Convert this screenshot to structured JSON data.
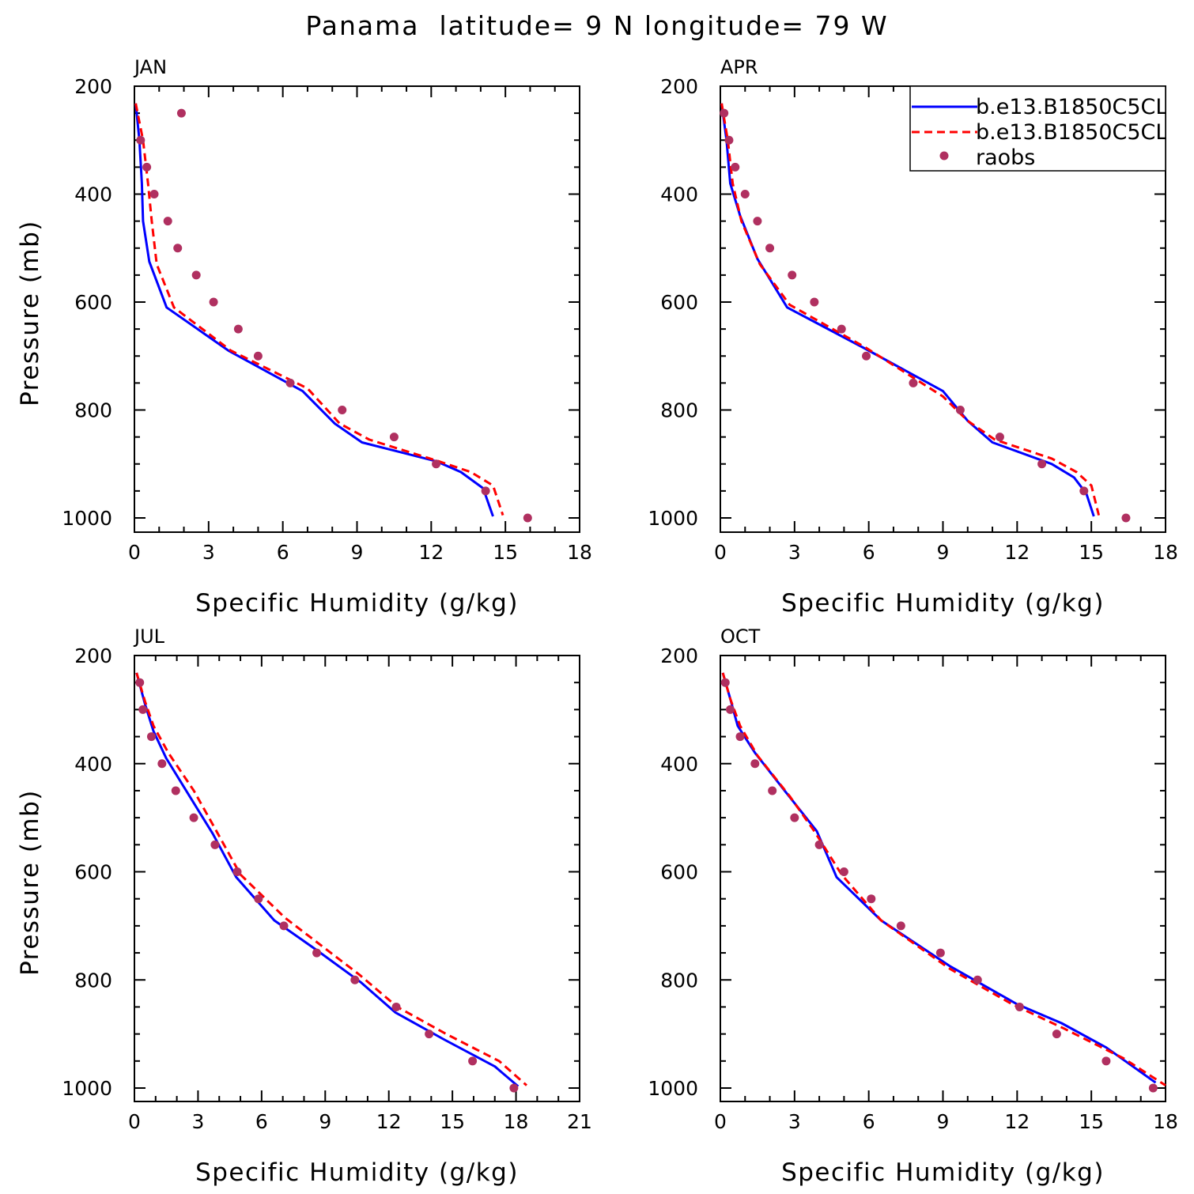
{
  "figure": {
    "title": "Panama  latitude= 9 N longitude= 79 W"
  },
  "legend": {
    "entries": [
      {
        "label": "b.e13.B1850C5CL",
        "style": "solid",
        "color": "#0000ff"
      },
      {
        "label": "b.e13.B1850C5CL",
        "style": "dashed",
        "color": "#ff0000"
      },
      {
        "label": "raobs",
        "style": "dot",
        "color": "#b03060"
      }
    ]
  },
  "chart_data": [
    {
      "type": "line",
      "title": "JAN",
      "xlabel": "Specific Humidity (g/kg)",
      "ylabel": "Pressure (mb)",
      "xlim": [
        0,
        18
      ],
      "xticks": [
        0,
        3,
        6,
        9,
        12,
        15,
        18
      ],
      "ylim": [
        1000,
        200
      ],
      "yticks": [
        200,
        400,
        600,
        800,
        1000
      ],
      "series": [
        {
          "style": "solid",
          "color": "#0000ff",
          "points": [
            [
              0.05,
              232
            ],
            [
              0.2,
              300
            ],
            [
              0.3,
              380
            ],
            [
              0.35,
              450
            ],
            [
              0.6,
              525
            ],
            [
              1.3,
              610
            ],
            [
              3.8,
              690
            ],
            [
              6.8,
              765
            ],
            [
              8.1,
              825
            ],
            [
              9.2,
              860
            ],
            [
              12.2,
              895
            ],
            [
              13.2,
              915
            ],
            [
              14.1,
              945
            ],
            [
              14.5,
              997
            ]
          ]
        },
        {
          "style": "dashed",
          "color": "#ff0000",
          "points": [
            [
              0.05,
              232
            ],
            [
              0.35,
              300
            ],
            [
              0.55,
              380
            ],
            [
              0.7,
              450
            ],
            [
              0.9,
              530
            ],
            [
              1.6,
              610
            ],
            [
              3.9,
              690
            ],
            [
              7.0,
              760
            ],
            [
              8.3,
              825
            ],
            [
              9.5,
              855
            ],
            [
              12.3,
              895
            ],
            [
              13.6,
              915
            ],
            [
              14.5,
              940
            ],
            [
              14.9,
              995
            ]
          ]
        },
        {
          "style": "dot",
          "color": "#b03060",
          "points": [
            [
              1.9,
              250
            ],
            [
              0.25,
              300
            ],
            [
              0.5,
              350
            ],
            [
              0.8,
              400
            ],
            [
              1.35,
              450
            ],
            [
              1.75,
              500
            ],
            [
              2.5,
              550
            ],
            [
              3.2,
              600
            ],
            [
              4.2,
              650
            ],
            [
              5.0,
              700
            ],
            [
              6.3,
              750
            ],
            [
              8.4,
              800
            ],
            [
              10.5,
              850
            ],
            [
              12.2,
              900
            ],
            [
              14.2,
              950
            ],
            [
              15.9,
              1000
            ]
          ]
        }
      ]
    },
    {
      "type": "line",
      "title": "APR",
      "xlabel": "Specific Humidity (g/kg)",
      "ylabel": "",
      "xlim": [
        0,
        18
      ],
      "xticks": [
        0,
        3,
        6,
        9,
        12,
        15,
        18
      ],
      "ylim": [
        1000,
        200
      ],
      "yticks": [
        200,
        400,
        600,
        800,
        1000
      ],
      "series": [
        {
          "style": "solid",
          "color": "#0000ff",
          "points": [
            [
              0.05,
              232
            ],
            [
              0.25,
              300
            ],
            [
              0.4,
              380
            ],
            [
              0.8,
              440
            ],
            [
              1.5,
              520
            ],
            [
              2.7,
              610
            ],
            [
              5.8,
              685
            ],
            [
              9.0,
              765
            ],
            [
              10.0,
              820
            ],
            [
              11.0,
              860
            ],
            [
              13.4,
              900
            ],
            [
              14.3,
              925
            ],
            [
              14.8,
              955
            ],
            [
              15.1,
              997
            ]
          ]
        },
        {
          "style": "dashed",
          "color": "#ff0000",
          "points": [
            [
              0.05,
              232
            ],
            [
              0.3,
              300
            ],
            [
              0.5,
              380
            ],
            [
              0.85,
              450
            ],
            [
              1.6,
              530
            ],
            [
              2.8,
              605
            ],
            [
              5.9,
              685
            ],
            [
              9.0,
              775
            ],
            [
              10.0,
              820
            ],
            [
              11.1,
              855
            ],
            [
              13.4,
              890
            ],
            [
              14.4,
              915
            ],
            [
              15.0,
              940
            ],
            [
              15.3,
              995
            ]
          ]
        },
        {
          "style": "dot",
          "color": "#b03060",
          "points": [
            [
              0.15,
              250
            ],
            [
              0.35,
              300
            ],
            [
              0.6,
              350
            ],
            [
              1.0,
              400
            ],
            [
              1.5,
              450
            ],
            [
              2.0,
              500
            ],
            [
              2.9,
              550
            ],
            [
              3.8,
              600
            ],
            [
              4.9,
              650
            ],
            [
              5.9,
              700
            ],
            [
              7.8,
              750
            ],
            [
              9.7,
              800
            ],
            [
              11.3,
              850
            ],
            [
              13.0,
              900
            ],
            [
              14.7,
              950
            ],
            [
              16.4,
              1000
            ]
          ]
        }
      ]
    },
    {
      "type": "line",
      "title": "JUL",
      "xlabel": "Specific Humidity (g/kg)",
      "ylabel": "Pressure (mb)",
      "xlim": [
        0,
        21
      ],
      "xticks": [
        0,
        3,
        6,
        9,
        12,
        15,
        18,
        21
      ],
      "ylim": [
        1000,
        200
      ],
      "yticks": [
        200,
        400,
        600,
        800,
        1000
      ],
      "series": [
        {
          "style": "solid",
          "color": "#0000ff",
          "points": [
            [
              0.1,
              232
            ],
            [
              0.5,
              290
            ],
            [
              0.9,
              340
            ],
            [
              1.5,
              390
            ],
            [
              2.6,
              460
            ],
            [
              3.7,
              530
            ],
            [
              4.8,
              610
            ],
            [
              6.6,
              690
            ],
            [
              8.6,
              745
            ],
            [
              10.7,
              805
            ],
            [
              12.3,
              860
            ],
            [
              14.6,
              910
            ],
            [
              17.0,
              960
            ],
            [
              18.1,
              997
            ]
          ]
        },
        {
          "style": "dashed",
          "color": "#ff0000",
          "points": [
            [
              0.1,
              232
            ],
            [
              0.5,
              285
            ],
            [
              0.9,
              330
            ],
            [
              1.6,
              380
            ],
            [
              2.8,
              450
            ],
            [
              3.8,
              520
            ],
            [
              5.0,
              605
            ],
            [
              7.1,
              685
            ],
            [
              10.6,
              790
            ],
            [
              12.4,
              850
            ],
            [
              14.7,
              900
            ],
            [
              17.2,
              950
            ],
            [
              18.5,
              995
            ]
          ]
        },
        {
          "style": "dot",
          "color": "#b03060",
          "points": [
            [
              0.25,
              250
            ],
            [
              0.4,
              300
            ],
            [
              0.8,
              350
            ],
            [
              1.3,
              400
            ],
            [
              1.95,
              450
            ],
            [
              2.8,
              500
            ],
            [
              3.8,
              550
            ],
            [
              4.85,
              600
            ],
            [
              5.85,
              650
            ],
            [
              7.05,
              700
            ],
            [
              8.6,
              750
            ],
            [
              10.4,
              800
            ],
            [
              12.35,
              850
            ],
            [
              13.9,
              900
            ],
            [
              15.95,
              950
            ],
            [
              17.9,
              1000
            ]
          ]
        }
      ]
    },
    {
      "type": "line",
      "title": "OCT",
      "xlabel": "Specific Humidity (g/kg)",
      "ylabel": "",
      "xlim": [
        0,
        18
      ],
      "xticks": [
        0,
        3,
        6,
        9,
        12,
        15,
        18
      ],
      "ylim": [
        1000,
        200
      ],
      "yticks": [
        200,
        400,
        600,
        800,
        1000
      ],
      "series": [
        {
          "style": "solid",
          "color": "#0000ff",
          "points": [
            [
              0.1,
              232
            ],
            [
              0.4,
              280
            ],
            [
              0.7,
              330
            ],
            [
              1.4,
              380
            ],
            [
              2.6,
              450
            ],
            [
              3.9,
              525
            ],
            [
              4.7,
              610
            ],
            [
              6.5,
              690
            ],
            [
              9.3,
              775
            ],
            [
              12.0,
              845
            ],
            [
              13.8,
              880
            ],
            [
              15.6,
              925
            ],
            [
              17.6,
              990
            ]
          ]
        },
        {
          "style": "dashed",
          "color": "#ff0000",
          "points": [
            [
              0.1,
              232
            ],
            [
              0.4,
              280
            ],
            [
              0.8,
              330
            ],
            [
              1.5,
              385
            ],
            [
              2.8,
              460
            ],
            [
              3.8,
              525
            ],
            [
              4.9,
              605
            ],
            [
              6.5,
              690
            ],
            [
              9.3,
              780
            ],
            [
              11.8,
              845
            ],
            [
              13.9,
              890
            ],
            [
              16.3,
              945
            ],
            [
              18.0,
              995
            ]
          ]
        },
        {
          "style": "dot",
          "color": "#b03060",
          "points": [
            [
              0.2,
              250
            ],
            [
              0.4,
              300
            ],
            [
              0.8,
              350
            ],
            [
              1.4,
              400
            ],
            [
              2.1,
              450
            ],
            [
              3.0,
              500
            ],
            [
              4.0,
              550
            ],
            [
              5.0,
              600
            ],
            [
              6.1,
              650
            ],
            [
              7.3,
              700
            ],
            [
              8.9,
              750
            ],
            [
              10.4,
              800
            ],
            [
              12.1,
              850
            ],
            [
              13.6,
              900
            ],
            [
              15.6,
              950
            ],
            [
              17.5,
              1000
            ]
          ]
        }
      ]
    }
  ]
}
